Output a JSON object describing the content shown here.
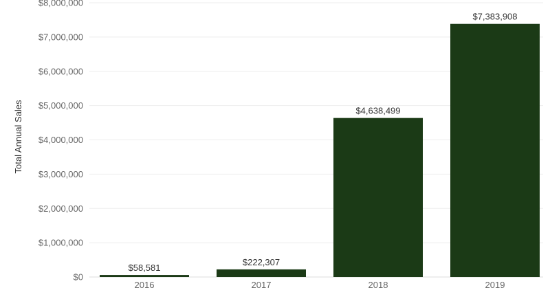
{
  "chart_data": {
    "type": "bar",
    "categories": [
      "2016",
      "2017",
      "2018",
      "2019"
    ],
    "values": [
      58581,
      222307,
      4638499,
      7383908
    ],
    "data_labels": [
      "$58,581",
      "$222,307",
      "$4,638,499",
      "$7,383,908"
    ],
    "title": "",
    "xlabel": "",
    "ylabel": "Total Annual Sales",
    "ylim": [
      0,
      8000000
    ],
    "yticks": [
      0,
      1000000,
      2000000,
      3000000,
      4000000,
      5000000,
      6000000,
      7000000,
      8000000
    ],
    "ytick_labels": [
      "$0",
      "$1,000,000",
      "$2,000,000",
      "$3,000,000",
      "$4,000,000",
      "$5,000,000",
      "$6,000,000",
      "$7,000,000",
      "$8,000,000"
    ],
    "grid": true,
    "legend": "none",
    "colors": {
      "bar": "#1b3a16",
      "grid": "#eeeeee",
      "axis": "#dddddd"
    }
  }
}
